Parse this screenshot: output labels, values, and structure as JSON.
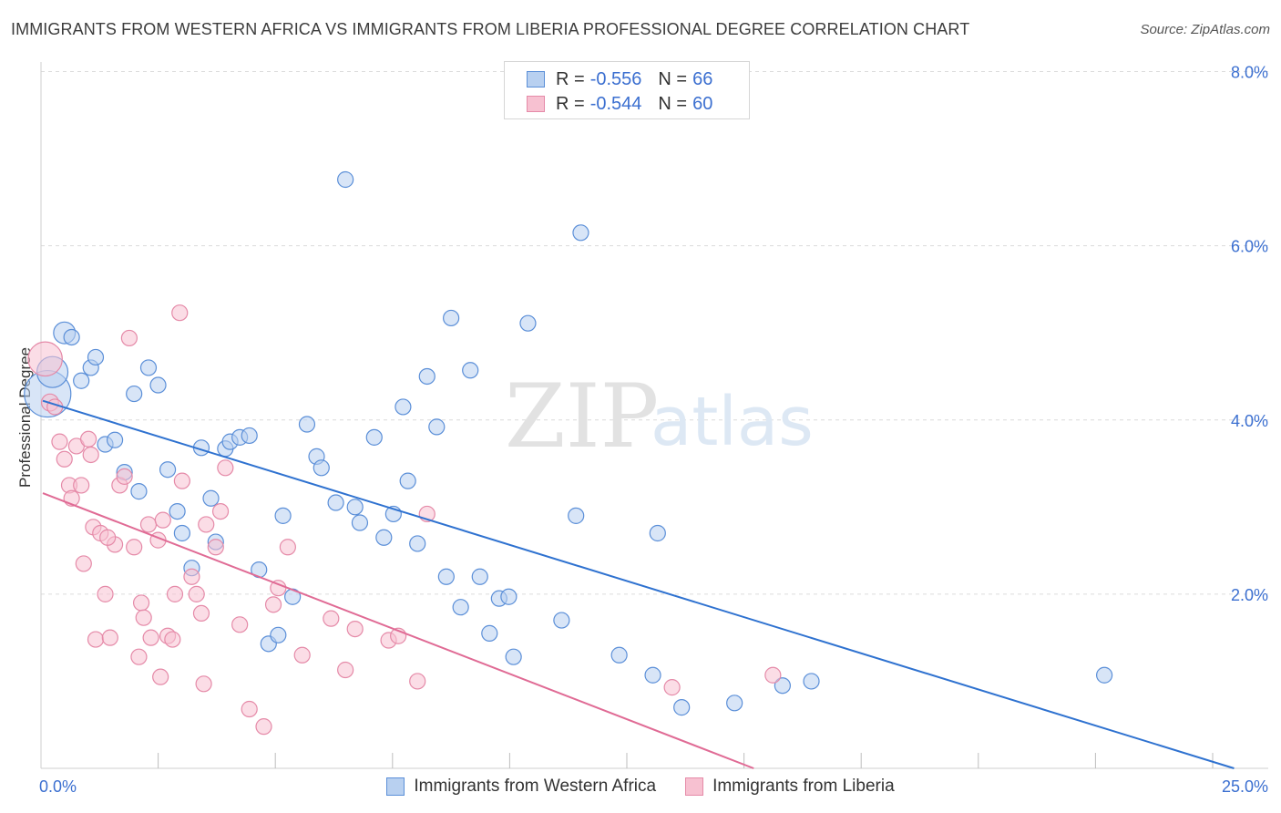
{
  "header": {
    "title": "IMMIGRANTS FROM WESTERN AFRICA VS IMMIGRANTS FROM LIBERIA PROFESSIONAL DEGREE CORRELATION CHART",
    "source": "Source: ZipAtlas.com"
  },
  "watermark": {
    "part1": "ZIP",
    "part2": "atlas"
  },
  "legend_top": {
    "rows": [
      {
        "r_label": "R =",
        "r_value": "-0.556",
        "n_label": "N =",
        "n_value": "66"
      },
      {
        "r_label": "R =",
        "r_value": "-0.544",
        "n_label": "N =",
        "n_value": "60"
      }
    ]
  },
  "legend_bottom": {
    "items": [
      "Immigrants from Western Africa",
      "Immigrants from Liberia"
    ]
  },
  "colors": {
    "blue_fill": "#b8d0f0",
    "blue_stroke": "#5b8fd8",
    "blue_line": "#2f72d0",
    "pink_fill": "#f7c1d1",
    "pink_stroke": "#e58aa8",
    "pink_line": "#e06b95",
    "tick_text": "#3b6fd0",
    "grid": "#dcdcdc"
  },
  "chart_data": {
    "type": "scatter",
    "title": "IMMIGRANTS FROM WESTERN AFRICA VS IMMIGRANTS FROM LIBERIA PROFESSIONAL DEGREE CORRELATION CHART",
    "xlabel": "",
    "ylabel": "Professional Degree",
    "xlim": [
      0,
      25
    ],
    "ylim": [
      0,
      8.2
    ],
    "x_tick_labels": [
      "0.0%",
      "25.0%"
    ],
    "y_ticks": [
      2,
      4,
      6,
      8
    ],
    "y_tick_labels": [
      "2.0%",
      "4.0%",
      "6.0%",
      "8.0%"
    ],
    "grid": true,
    "series": [
      {
        "name": "Immigrants from Western Africa",
        "color": "blue",
        "trend": [
          [
            0,
            4.22
          ],
          [
            24.8,
            0.0
          ]
        ],
        "points": [
          [
            0.1,
            4.3,
            3
          ],
          [
            0.2,
            4.55,
            2
          ],
          [
            0.45,
            5.0,
            1.4
          ],
          [
            0.6,
            4.95,
            1
          ],
          [
            0.8,
            4.45,
            1
          ],
          [
            1.0,
            4.6,
            1
          ],
          [
            1.1,
            4.72,
            1
          ],
          [
            1.3,
            3.72,
            1
          ],
          [
            1.5,
            3.77,
            1
          ],
          [
            1.7,
            3.4,
            1
          ],
          [
            1.9,
            4.3,
            1
          ],
          [
            2.0,
            3.18,
            1
          ],
          [
            2.2,
            4.6,
            1
          ],
          [
            2.4,
            4.4,
            1
          ],
          [
            2.6,
            3.43,
            1
          ],
          [
            2.8,
            2.95,
            1
          ],
          [
            2.9,
            2.7,
            1
          ],
          [
            3.1,
            2.3,
            1
          ],
          [
            3.3,
            3.68,
            1
          ],
          [
            3.5,
            3.1,
            1
          ],
          [
            3.6,
            2.6,
            1
          ],
          [
            3.8,
            3.67,
            1
          ],
          [
            3.9,
            3.75,
            1
          ],
          [
            4.1,
            3.8,
            1
          ],
          [
            4.3,
            3.82,
            1
          ],
          [
            4.5,
            2.28,
            1
          ],
          [
            4.7,
            1.43,
            1
          ],
          [
            4.9,
            1.53,
            1
          ],
          [
            5.0,
            2.9,
            1
          ],
          [
            5.2,
            1.97,
            1
          ],
          [
            5.5,
            3.95,
            1
          ],
          [
            5.7,
            3.58,
            1
          ],
          [
            5.8,
            3.45,
            1
          ],
          [
            6.1,
            3.05,
            1
          ],
          [
            6.3,
            6.76,
            1
          ],
          [
            6.5,
            3.0,
            1
          ],
          [
            6.6,
            2.82,
            1
          ],
          [
            6.9,
            3.8,
            1
          ],
          [
            7.1,
            2.65,
            1
          ],
          [
            7.3,
            2.92,
            1
          ],
          [
            7.5,
            4.15,
            1
          ],
          [
            7.6,
            3.3,
            1
          ],
          [
            7.8,
            2.58,
            1
          ],
          [
            8.0,
            4.5,
            1
          ],
          [
            8.2,
            3.92,
            1
          ],
          [
            8.4,
            2.2,
            1
          ],
          [
            8.5,
            5.17,
            1
          ],
          [
            8.7,
            1.85,
            1
          ],
          [
            8.9,
            4.57,
            1
          ],
          [
            9.1,
            2.2,
            1
          ],
          [
            9.3,
            1.55,
            1
          ],
          [
            9.5,
            1.95,
            1
          ],
          [
            9.7,
            1.97,
            1
          ],
          [
            9.8,
            1.28,
            1
          ],
          [
            10.1,
            5.11,
            1
          ],
          [
            10.8,
            1.7,
            1
          ],
          [
            11.1,
            2.9,
            1
          ],
          [
            11.2,
            6.15,
            1
          ],
          [
            12.0,
            1.3,
            1
          ],
          [
            12.7,
            1.07,
            1
          ],
          [
            12.8,
            2.7,
            1
          ],
          [
            13.3,
            0.7,
            1
          ],
          [
            14.4,
            0.75,
            1
          ],
          [
            15.4,
            0.95,
            1
          ],
          [
            16.0,
            1.0,
            1
          ],
          [
            22.1,
            1.07,
            1
          ]
        ]
      },
      {
        "name": "Immigrants from Liberia",
        "color": "pink",
        "trend": [
          [
            0,
            3.16
          ],
          [
            14.8,
            0.0
          ]
        ],
        "points": [
          [
            0.05,
            4.7,
            2.2
          ],
          [
            0.15,
            4.2,
            1.1
          ],
          [
            0.25,
            4.15,
            1
          ],
          [
            0.35,
            3.75,
            1
          ],
          [
            0.45,
            3.55,
            1
          ],
          [
            0.55,
            3.25,
            1
          ],
          [
            0.6,
            3.1,
            1
          ],
          [
            0.7,
            3.7,
            1
          ],
          [
            0.8,
            3.25,
            1
          ],
          [
            0.85,
            2.35,
            1
          ],
          [
            0.95,
            3.78,
            1
          ],
          [
            1.0,
            3.6,
            1
          ],
          [
            1.05,
            2.77,
            1
          ],
          [
            1.1,
            1.48,
            1
          ],
          [
            1.2,
            2.7,
            1
          ],
          [
            1.3,
            2.0,
            1
          ],
          [
            1.4,
            1.5,
            1
          ],
          [
            1.5,
            2.57,
            1
          ],
          [
            1.6,
            3.25,
            1
          ],
          [
            1.7,
            3.35,
            1
          ],
          [
            1.8,
            4.94,
            1
          ],
          [
            1.9,
            2.54,
            1
          ],
          [
            2.0,
            1.28,
            1
          ],
          [
            2.05,
            1.9,
            1
          ],
          [
            2.1,
            1.73,
            1
          ],
          [
            2.2,
            2.8,
            1
          ],
          [
            2.4,
            2.62,
            1
          ],
          [
            2.45,
            1.05,
            1
          ],
          [
            2.5,
            2.85,
            1
          ],
          [
            2.6,
            1.52,
            1
          ],
          [
            2.7,
            1.48,
            1
          ],
          [
            2.75,
            2.0,
            1
          ],
          [
            2.85,
            5.23,
            1
          ],
          [
            2.9,
            3.3,
            1
          ],
          [
            3.1,
            2.2,
            1
          ],
          [
            3.2,
            2.0,
            1
          ],
          [
            3.3,
            1.78,
            1
          ],
          [
            3.35,
            0.97,
            1
          ],
          [
            3.4,
            2.8,
            1
          ],
          [
            3.6,
            2.54,
            1
          ],
          [
            3.7,
            2.95,
            1
          ],
          [
            3.8,
            3.45,
            1
          ],
          [
            4.1,
            1.65,
            1
          ],
          [
            4.3,
            0.68,
            1
          ],
          [
            4.6,
            0.48,
            1
          ],
          [
            4.8,
            1.88,
            1
          ],
          [
            4.9,
            2.07,
            1
          ],
          [
            5.1,
            2.54,
            1
          ],
          [
            5.4,
            1.3,
            1
          ],
          [
            6.0,
            1.72,
            1
          ],
          [
            6.3,
            1.13,
            1
          ],
          [
            6.5,
            1.6,
            1
          ],
          [
            7.2,
            1.47,
            1
          ],
          [
            7.4,
            1.52,
            1
          ],
          [
            7.8,
            1.0,
            1
          ],
          [
            8.0,
            2.92,
            1
          ],
          [
            13.1,
            0.93,
            1
          ],
          [
            15.2,
            1.07,
            1
          ],
          [
            1.35,
            2.65,
            1
          ],
          [
            2.25,
            1.5,
            1
          ]
        ]
      }
    ]
  }
}
